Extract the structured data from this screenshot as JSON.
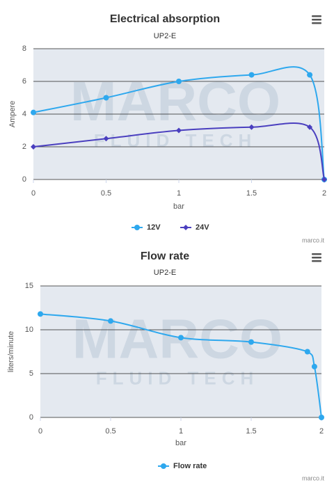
{
  "chart_data": [
    {
      "type": "line",
      "title": "Electrical absorption",
      "subtitle": "UP2-E",
      "x_label": "bar",
      "y_label": "Ampere",
      "x": [
        0,
        0.5,
        1,
        1.5,
        1.9,
        2
      ],
      "xlim": [
        0,
        2
      ],
      "xticks": [
        0,
        0.5,
        1,
        1.5,
        2
      ],
      "ylim": [
        0,
        8
      ],
      "yticks": [
        0,
        2,
        4,
        6,
        8
      ],
      "grid": true,
      "legend": "bottom",
      "watermark": {
        "title": "MARCO",
        "subtitle": "FLUID TECH"
      },
      "credits": "marco.it",
      "series": [
        {
          "name": "12V",
          "color": "#2ea8ee",
          "marker": "circle",
          "values": [
            4.1,
            5,
            6,
            6.4,
            6.4,
            0
          ]
        },
        {
          "name": "24V",
          "color": "#4a3fbf",
          "marker": "diamond",
          "values": [
            2,
            2.5,
            3,
            3.2,
            3.2,
            0
          ]
        }
      ]
    },
    {
      "type": "line",
      "title": "Flow rate",
      "subtitle": "UP2-E",
      "x_label": "bar",
      "y_label": "liters/minute",
      "x": [
        0,
        0.5,
        1,
        1.5,
        1.9,
        1.95,
        2
      ],
      "xlim": [
        0,
        2
      ],
      "xticks": [
        0,
        0.5,
        1,
        1.5,
        2
      ],
      "ylim": [
        0,
        15
      ],
      "yticks": [
        0,
        5,
        10,
        15
      ],
      "grid": true,
      "legend": "bottom",
      "watermark": {
        "title": "MARCO",
        "subtitle": "FLUID TECH"
      },
      "credits": "marco.it",
      "series": [
        {
          "name": "Flow rate",
          "color": "#2ea8ee",
          "marker": "circle",
          "values": [
            11.8,
            11,
            9.1,
            8.6,
            7.5,
            5.8,
            0
          ]
        }
      ]
    }
  ]
}
